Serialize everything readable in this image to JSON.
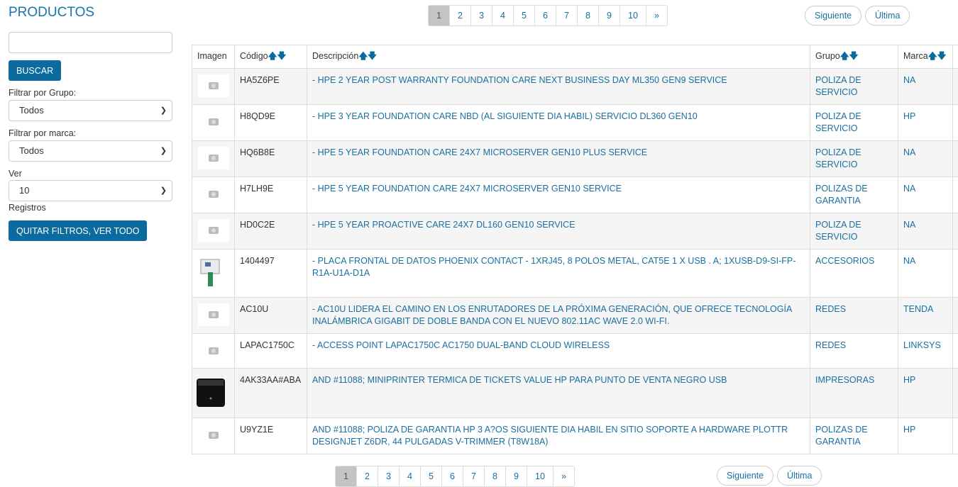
{
  "sidebar": {
    "title": "PRODUCTOS",
    "search_value": "",
    "search_button": "BUSCAR",
    "group_label": "Filtrar por Grupo:",
    "group_value": "Todos",
    "brand_label": "Filtrar por marca:",
    "brand_value": "Todos",
    "ver_label": "Ver",
    "ver_value": "10",
    "registros_label": "Registros",
    "clear_button": "QUITAR FILTROS, VER TODO"
  },
  "pagination": {
    "pages": [
      "1",
      "2",
      "3",
      "4",
      "5",
      "6",
      "7",
      "8",
      "9",
      "10",
      "»"
    ],
    "current": "1",
    "next": "Siguiente",
    "last": "Última"
  },
  "table": {
    "headers": [
      "Imagen",
      "Código",
      "Descripción",
      "Grupo",
      "Marca"
    ],
    "sort_up": "🡅",
    "sort_down": "🡇",
    "rows": [
      {
        "image": "placeholder",
        "code": "HA5Z6PE",
        "desc": "- HPE 2 YEAR POST WARRANTY FOUNDATION CARE NEXT BUSINESS DAY ML350 GEN9 SERVICE",
        "group": "POLIZA DE SERVICIO",
        "brand": "NA"
      },
      {
        "image": "placeholder",
        "code": "H8QD9E",
        "desc": "- HPE 3 YEAR FOUNDATION CARE NBD (AL SIGUIENTE DIA HABIL) SERVICIO DL360 GEN10",
        "group": "POLIZA DE SERVICIO",
        "brand": "HP"
      },
      {
        "image": "placeholder",
        "code": "HQ6B8E",
        "desc": "- HPE 5 YEAR FOUNDATION CARE 24X7 MICROSERVER GEN10 PLUS SERVICE",
        "group": "POLIZA DE SERVICIO",
        "brand": "NA"
      },
      {
        "image": "placeholder",
        "code": "H7LH9E",
        "desc": "- HPE 5 YEAR FOUNDATION CARE 24X7 MICROSERVER GEN10 SERVICE",
        "group": "POLIZAS DE GARANTIA",
        "brand": "NA"
      },
      {
        "image": "placeholder",
        "code": "HD0C2E",
        "desc": "- HPE 5 YEAR PROACTIVE CARE 24X7 DL160 GEN10 SERVICE",
        "group": "POLIZA DE SERVICIO",
        "brand": "NA"
      },
      {
        "image": "faceplate",
        "code": "1404497",
        "desc": "- PLACA FRONTAL DE DATOS PHOENIX CONTACT - 1XRJ45, 8 POLOS METAL, CAT5E 1 X USB . A; 1XUSB-D9-SI-FP-R1A-U1A-D1A",
        "group": "ACCESORIOS",
        "brand": "NA"
      },
      {
        "image": "placeholder",
        "code": "AC10U",
        "desc": "- AC10U LIDERA EL CAMINO EN LOS ENRUTADORES DE LA PRÓXIMA GENERACIÓN, QUE OFRECE TECNOLOGÍA INALÁMBRICA GIGABIT DE DOBLE BANDA CON EL NUEVO 802.11AC WAVE 2.0 WI-FI.",
        "group": "REDES",
        "brand": "TENDA"
      },
      {
        "image": "placeholder",
        "code": "LAPAC1750C",
        "desc": "- ACCESS POINT LAPAC1750C AC1750 DUAL-BAND CLOUD WIRELESS",
        "group": "REDES",
        "brand": "LINKSYS"
      },
      {
        "image": "printer",
        "code": "4AK33AA#ABA",
        "desc": "AND #11088; MINIPRINTER TERMICA DE TICKETS VALUE HP PARA PUNTO DE VENTA NEGRO USB",
        "group": "IMPRESORAS",
        "brand": "HP"
      },
      {
        "image": "placeholder",
        "code": "U9YZ1E",
        "desc": "AND #11088; POLIZA DE GARANTIA HP 3 A?OS SIGUIENTE DIA HABIL EN SITIO SOPORTE A HARDWARE PLOTTR DESIGNJET Z6DR, 44 PULGADAS V-TRIMMER (T8W18A)",
        "group": "POLIZAS DE GARANTIA",
        "brand": "HP"
      }
    ]
  },
  "colors": {
    "accent": "#0b6a9e",
    "link": "#1a6fa0",
    "title": "#1a75a8"
  }
}
